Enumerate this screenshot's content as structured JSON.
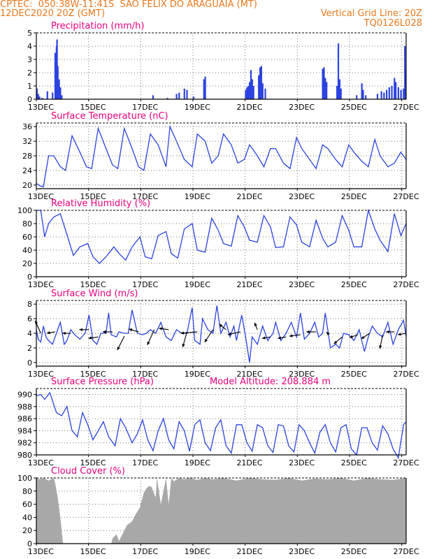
{
  "header": {
    "line1_left": "CPTEC:  050:38W-11:41S  SAO FELIX DO ARAGUAIA (MT)",
    "line2_left": "12DEC2020 20Z (GMT)",
    "line2_right": "Vertical Grid Line: 20Z",
    "line3_right": "TQ0126L028"
  },
  "colors": {
    "header": "#e8781e",
    "title": "#e6007e",
    "line": "#2b43e0",
    "bar": "#2b43e0",
    "cloud": "#a8a8a8",
    "arrow": "#000000"
  },
  "x_axis": {
    "ticks": [
      "13DEC",
      "15DEC",
      "17DEC",
      "19DEC",
      "21DEC",
      "23DEC",
      "25DEC",
      "27DEC"
    ]
  },
  "chart_data": [
    {
      "id": "precip",
      "type": "bar",
      "title": "Precipitation (mm/h)",
      "ylim": [
        0,
        5
      ],
      "yticks": [
        "0",
        "1",
        "2",
        "3",
        "4",
        "5"
      ],
      "x_start_day": 12.83,
      "x_end_day": 27.0,
      "values": [
        [
          12.85,
          0.8
        ],
        [
          12.9,
          0.4
        ],
        [
          12.95,
          0.2
        ],
        [
          13.05,
          0.1
        ],
        [
          13.25,
          0.6
        ],
        [
          13.45,
          0.5
        ],
        [
          13.55,
          3.5
        ],
        [
          13.6,
          4.0
        ],
        [
          13.62,
          4.5
        ],
        [
          13.65,
          2.5
        ],
        [
          13.7,
          1.5
        ],
        [
          13.75,
          0.9
        ],
        [
          13.8,
          0.3
        ],
        [
          17.3,
          0.3
        ],
        [
          17.85,
          0.1
        ],
        [
          18.2,
          0.4
        ],
        [
          18.3,
          0.5
        ],
        [
          18.5,
          0.8
        ],
        [
          18.6,
          0.7
        ],
        [
          18.85,
          0.2
        ],
        [
          19.25,
          1.5
        ],
        [
          19.3,
          1.7
        ],
        [
          20.85,
          0.7
        ],
        [
          20.9,
          0.9
        ],
        [
          20.95,
          1.0
        ],
        [
          21.0,
          1.3
        ],
        [
          21.05,
          2.2
        ],
        [
          21.1,
          1.5
        ],
        [
          21.15,
          1.0
        ],
        [
          21.35,
          1.8
        ],
        [
          21.4,
          2.4
        ],
        [
          21.45,
          2.5
        ],
        [
          21.5,
          1.2
        ],
        [
          21.6,
          0.8
        ],
        [
          23.8,
          2.3
        ],
        [
          23.85,
          2.4
        ],
        [
          23.9,
          1.6
        ],
        [
          23.95,
          1.3
        ],
        [
          24.35,
          1.0
        ],
        [
          24.4,
          4.2
        ],
        [
          24.45,
          1.5
        ],
        [
          24.5,
          0.8
        ],
        [
          25.1,
          0.3
        ],
        [
          25.3,
          1.2
        ],
        [
          25.35,
          0.7
        ],
        [
          25.45,
          0.3
        ],
        [
          25.9,
          0.4
        ],
        [
          26.05,
          0.6
        ],
        [
          26.15,
          0.5
        ],
        [
          26.25,
          0.7
        ],
        [
          26.35,
          0.9
        ],
        [
          26.45,
          1.0
        ],
        [
          26.55,
          1.6
        ],
        [
          26.6,
          1.3
        ],
        [
          26.7,
          0.9
        ],
        [
          26.8,
          0.7
        ],
        [
          26.9,
          0.8
        ],
        [
          26.95,
          4.0
        ],
        [
          26.98,
          2.2
        ]
      ]
    },
    {
      "id": "temp",
      "type": "line",
      "title": "Surface Temperature (nC)",
      "ylim": [
        19,
        37
      ],
      "yticks": [
        "20",
        "24",
        "28",
        "32",
        "36"
      ],
      "x": [
        12.83,
        12.95,
        13.1,
        13.3,
        13.5,
        13.75,
        13.95,
        14.2,
        14.5,
        14.75,
        14.95,
        15.2,
        15.5,
        15.75,
        15.95,
        16.2,
        16.5,
        16.75,
        16.95,
        17.2,
        17.5,
        17.8,
        17.95,
        18.2,
        18.5,
        18.8,
        19.0,
        19.3,
        19.55,
        19.8,
        20.0,
        20.3,
        20.55,
        20.8,
        21.0,
        21.3,
        21.55,
        21.8,
        22.0,
        22.3,
        22.55,
        22.8,
        23.0,
        23.3,
        23.55,
        23.8,
        24.0,
        24.3,
        24.55,
        24.8,
        25.0,
        25.3,
        25.55,
        25.8,
        26.0,
        26.3,
        26.55,
        26.8,
        27.0
      ],
      "series": [
        {
          "values": [
            20.5,
            19.8,
            19.5,
            28,
            28,
            25,
            24,
            33.5,
            29,
            25,
            24.5,
            35.5,
            30,
            25.5,
            24.5,
            35.5,
            30,
            25,
            24,
            34,
            31,
            25,
            36,
            32,
            27,
            25,
            34,
            32,
            26,
            28,
            34,
            31,
            26,
            27,
            31,
            28,
            25,
            30,
            30,
            26,
            24.5,
            33,
            30,
            27,
            24.5,
            31,
            30,
            27,
            25,
            31,
            29,
            26.5,
            25,
            32.5,
            28,
            25,
            26,
            29,
            27
          ]
        }
      ]
    },
    {
      "id": "rh",
      "type": "line",
      "title": "Relative Humidity (%)",
      "ylim": [
        0,
        100
      ],
      "yticks": [
        "0",
        "20",
        "40",
        "60",
        "80",
        "100"
      ],
      "x": [
        12.83,
        13.0,
        13.15,
        13.3,
        13.5,
        13.75,
        13.95,
        14.25,
        14.5,
        14.8,
        15.0,
        15.25,
        15.5,
        15.8,
        16.0,
        16.25,
        16.5,
        16.8,
        17.0,
        17.25,
        17.5,
        17.8,
        18.0,
        18.25,
        18.5,
        18.8,
        19.0,
        19.3,
        19.55,
        19.8,
        20.0,
        20.3,
        20.55,
        20.8,
        21.0,
        21.3,
        21.55,
        21.8,
        22.0,
        22.3,
        22.55,
        22.8,
        23.0,
        23.3,
        23.55,
        23.8,
        24.0,
        24.3,
        24.55,
        24.8,
        25.0,
        25.3,
        25.55,
        25.8,
        26.0,
        26.3,
        26.55,
        26.8,
        27.0
      ],
      "series": [
        {
          "values": [
            100,
            100,
            60,
            80,
            90,
            95,
            70,
            32,
            45,
            50,
            30,
            20,
            30,
            45,
            35,
            25,
            45,
            60,
            30,
            27,
            62,
            68,
            35,
            28,
            72,
            80,
            40,
            37,
            88,
            70,
            50,
            46,
            92,
            75,
            55,
            52,
            92,
            75,
            44,
            45,
            90,
            78,
            52,
            45,
            85,
            58,
            45,
            52,
            92,
            70,
            45,
            45,
            100,
            72,
            55,
            38,
            95,
            62,
            80
          ]
        }
      ]
    },
    {
      "id": "wind",
      "type": "line",
      "title": "Surface Wind (m/s)",
      "ylim": [
        -0.5,
        8.5
      ],
      "yticks": [
        "0",
        "2",
        "4",
        "6",
        "8"
      ],
      "x": [
        12.83,
        12.9,
        13.0,
        13.1,
        13.2,
        13.3,
        13.45,
        13.6,
        13.75,
        13.9,
        14.0,
        14.15,
        14.3,
        14.5,
        14.7,
        14.85,
        15.0,
        15.15,
        15.3,
        15.5,
        15.6,
        15.7,
        15.9,
        16.0,
        16.2,
        16.35,
        16.5,
        16.7,
        16.9,
        17.05,
        17.2,
        17.4,
        17.6,
        17.8,
        18.0,
        18.2,
        18.4,
        18.6,
        18.8,
        18.9,
        19.1,
        19.2,
        19.4,
        19.6,
        19.75,
        19.9,
        20.1,
        20.25,
        20.4,
        20.5,
        20.7,
        20.85,
        21.0,
        21.1,
        21.3,
        21.5,
        21.7,
        21.9,
        22.0,
        22.2,
        22.4,
        22.6,
        22.8,
        22.95,
        23.1,
        23.3,
        23.5,
        23.65,
        23.8,
        23.9,
        24.1,
        24.3,
        24.45,
        24.6,
        24.8,
        25.0,
        25.2,
        25.4,
        25.55,
        25.7,
        25.9,
        26.1,
        26.3,
        26.5,
        26.7,
        26.9,
        27.0
      ],
      "series": [
        {
          "values": [
            4.5,
            3.2,
            2.8,
            5.0,
            3.5,
            3.0,
            2.5,
            4.0,
            5.5,
            2.5,
            3.0,
            4.5,
            3.8,
            3.2,
            4.0,
            6.5,
            3.0,
            2.5,
            4.0,
            4.0,
            6.8,
            3.8,
            3.5,
            4.2,
            4.0,
            4.0,
            7.2,
            4.0,
            3.8,
            4.0,
            4.5,
            4.0,
            5.5,
            3.5,
            3.0,
            4.5,
            4.0,
            4.0,
            7.5,
            3.0,
            2.5,
            6.0,
            4.5,
            4.0,
            7.8,
            4.0,
            5.5,
            3.5,
            5.0,
            3.0,
            6.5,
            3.5,
            0.0,
            3.5,
            2.5,
            5.0,
            3.0,
            4.0,
            5.5,
            3.0,
            4.0,
            5.5,
            3.5,
            6.8,
            3.2,
            4.0,
            5.5,
            3.5,
            4.0,
            6.8,
            2.0,
            2.5,
            2.0,
            4.0,
            3.8,
            3.0,
            4.5,
            1.5,
            3.5,
            5.0,
            4.0,
            3.5,
            5.5,
            2.5,
            4.5,
            5.8,
            3.5
          ]
        }
      ],
      "arrows": [
        {
          "x": 13.0,
          "y": 4.0,
          "dx": -8,
          "dy": -18
        },
        {
          "x": 13.55,
          "y": 4.2,
          "dx": -12,
          "dy": 2
        },
        {
          "x": 14.15,
          "y": 4.0,
          "dx": -12,
          "dy": 0
        },
        {
          "x": 14.85,
          "y": 4.5,
          "dx": -14,
          "dy": 0
        },
        {
          "x": 15.2,
          "y": 3.5,
          "dx": -14,
          "dy": 2
        },
        {
          "x": 15.75,
          "y": 4.2,
          "dx": -14,
          "dy": 0
        },
        {
          "x": 16.2,
          "y": 3.6,
          "dx": -10,
          "dy": 20
        },
        {
          "x": 16.75,
          "y": 4.2,
          "dx": -14,
          "dy": -4
        },
        {
          "x": 17.35,
          "y": 4.5,
          "dx": -10,
          "dy": 22
        },
        {
          "x": 17.9,
          "y": 4.5,
          "dx": -14,
          "dy": -2
        },
        {
          "x": 18.6,
          "y": 4.2,
          "dx": -6,
          "dy": 22
        },
        {
          "x": 19.0,
          "y": 4.2,
          "dx": -24,
          "dy": 2
        },
        {
          "x": 19.6,
          "y": 4.5,
          "dx": -12,
          "dy": 18
        },
        {
          "x": 20.1,
          "y": 4.5,
          "dx": -10,
          "dy": -8
        },
        {
          "x": 20.65,
          "y": 4.2,
          "dx": -18,
          "dy": 4
        },
        {
          "x": 21.3,
          "y": 4.5,
          "dx": -4,
          "dy": -10
        },
        {
          "x": 21.8,
          "y": 3.5,
          "dx": -12,
          "dy": 2
        },
        {
          "x": 22.4,
          "y": 3.5,
          "dx": -12,
          "dy": 2
        },
        {
          "x": 22.95,
          "y": 3.8,
          "dx": -16,
          "dy": 2
        },
        {
          "x": 23.55,
          "y": 4.2,
          "dx": -14,
          "dy": 0
        },
        {
          "x": 24.05,
          "y": 3.8,
          "dx": -4,
          "dy": -4
        },
        {
          "x": 24.55,
          "y": 3.5,
          "dx": -12,
          "dy": 10
        },
        {
          "x": 25.15,
          "y": 3.8,
          "dx": -12,
          "dy": 4
        },
        {
          "x": 25.6,
          "y": 4.0,
          "dx": -12,
          "dy": 8
        },
        {
          "x": 26.1,
          "y": 3.8,
          "dx": -4,
          "dy": 20
        },
        {
          "x": 26.55,
          "y": 4.2,
          "dx": -12,
          "dy": 0
        },
        {
          "x": 27.0,
          "y": 4.0,
          "dx": -12,
          "dy": 2
        }
      ]
    },
    {
      "id": "pres",
      "type": "line",
      "title": "Surface Pressure (hPa)",
      "subtitle": "Model Altitude: 208.884 m",
      "ylim": [
        980,
        991
      ],
      "yticks": [
        "980",
        "982",
        "984",
        "986",
        "988",
        "990"
      ],
      "x": [
        12.83,
        13.0,
        13.15,
        13.35,
        13.6,
        13.8,
        14.0,
        14.2,
        14.4,
        14.6,
        14.8,
        15.0,
        15.2,
        15.4,
        15.6,
        15.85,
        16.05,
        16.25,
        16.5,
        16.7,
        16.9,
        17.1,
        17.3,
        17.5,
        17.7,
        17.9,
        18.1,
        18.3,
        18.5,
        18.7,
        18.9,
        19.1,
        19.3,
        19.5,
        19.7,
        19.9,
        20.1,
        20.3,
        20.5,
        20.7,
        20.9,
        21.1,
        21.3,
        21.5,
        21.7,
        21.9,
        22.1,
        22.3,
        22.5,
        22.7,
        22.9,
        23.1,
        23.3,
        23.5,
        23.7,
        23.9,
        24.1,
        24.3,
        24.5,
        24.7,
        24.9,
        25.1,
        25.3,
        25.5,
        25.7,
        25.9,
        26.1,
        26.3,
        26.5,
        26.7,
        26.9,
        27.0
      ],
      "series": [
        {
          "values": [
            989.8,
            990.0,
            989.2,
            990.3,
            987.0,
            986.5,
            988.0,
            984.0,
            983.0,
            987.0,
            985.0,
            982.5,
            984.0,
            985.5,
            983.0,
            981.5,
            986.0,
            984.5,
            982.0,
            983.5,
            985.8,
            982.5,
            980.7,
            984.0,
            986.0,
            982.5,
            981.0,
            985.5,
            984.0,
            980.6,
            985.0,
            985.8,
            982.0,
            980.7,
            984.5,
            985.8,
            981.5,
            980.3,
            985.0,
            985.0,
            982.0,
            980.6,
            985.0,
            984.5,
            981.5,
            980.4,
            985.0,
            984.8,
            981.5,
            980.5,
            985.0,
            984.0,
            982.0,
            980.3,
            983.8,
            985.0,
            982.0,
            980.5,
            984.5,
            985.0,
            981.0,
            980.0,
            984.5,
            984.5,
            982.0,
            980.8,
            984.8,
            983.5,
            981.0,
            979.5,
            985.0,
            985.5
          ]
        }
      ]
    },
    {
      "id": "cloud",
      "type": "area",
      "title": "Cloud Cover (%)",
      "ylim": [
        0,
        100
      ],
      "yticks": [
        "0",
        "20",
        "40",
        "60",
        "80",
        "100"
      ],
      "x": [
        12.83,
        12.95,
        13.1,
        13.3,
        13.5,
        13.55,
        13.65,
        13.75,
        13.8,
        13.85,
        15.7,
        15.75,
        15.9,
        16.0,
        16.2,
        16.3,
        16.5,
        16.6,
        16.8,
        16.95,
        17.05,
        17.15,
        17.25,
        17.4,
        17.45,
        17.6,
        17.75,
        17.8,
        17.9,
        18.0,
        18.1,
        18.3,
        18.5,
        18.7,
        19.0,
        19.3,
        19.6,
        20.0,
        20.5,
        21.0,
        21.5,
        22.0,
        22.5,
        23.0,
        23.5,
        24.0,
        24.5,
        25.0,
        25.5,
        26.0,
        26.5,
        27.0
      ],
      "series": [
        {
          "values": [
            100,
            98,
            100,
            96,
            100,
            92,
            70,
            40,
            20,
            0,
            0,
            8,
            14,
            4,
            20,
            28,
            34,
            42,
            55,
            78,
            84,
            88,
            86,
            70,
            100,
            60,
            90,
            100,
            60,
            100,
            95,
            100,
            98,
            100,
            97,
            100,
            98,
            100,
            96,
            100,
            98,
            97,
            100,
            96,
            99,
            98,
            100,
            96,
            100,
            98,
            97,
            100
          ]
        }
      ]
    }
  ]
}
